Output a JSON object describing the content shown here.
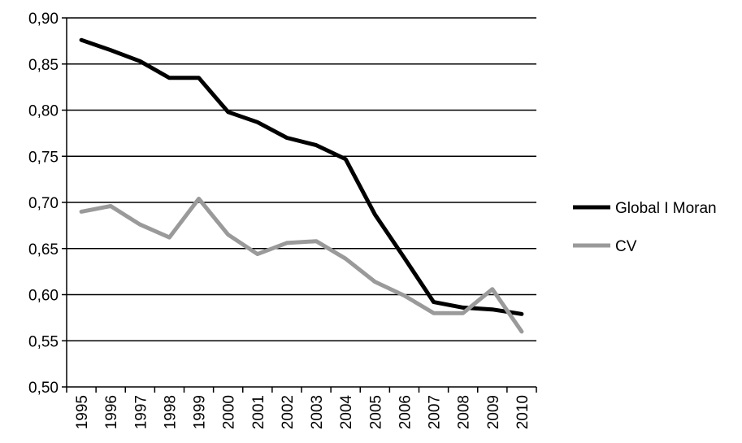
{
  "chart_data": {
    "type": "line",
    "x": [
      "1995",
      "1996",
      "1997",
      "1998",
      "1999",
      "2000",
      "2001",
      "2002",
      "2003",
      "2004",
      "2005",
      "2006",
      "2007",
      "2008",
      "2009",
      "2010"
    ],
    "ylim": [
      0.5,
      0.9
    ],
    "yticks": [
      "0,50",
      "0,55",
      "0,60",
      "0,65",
      "0,70",
      "0,75",
      "0,80",
      "0,85",
      "0,90"
    ],
    "grid": true,
    "legend_position": "right",
    "series": [
      {
        "name": "Global I Moran",
        "color": "#000000",
        "values": [
          0.876,
          0.865,
          0.853,
          0.835,
          0.835,
          0.798,
          0.787,
          0.77,
          0.762,
          0.747,
          0.687,
          0.64,
          0.592,
          0.586,
          0.584,
          0.579
        ]
      },
      {
        "name": "CV",
        "color": "#9a9a9a",
        "values": [
          0.69,
          0.696,
          0.676,
          0.662,
          0.704,
          0.665,
          0.644,
          0.656,
          0.658,
          0.639,
          0.614,
          0.599,
          0.58,
          0.58,
          0.606,
          0.56
        ]
      }
    ]
  }
}
